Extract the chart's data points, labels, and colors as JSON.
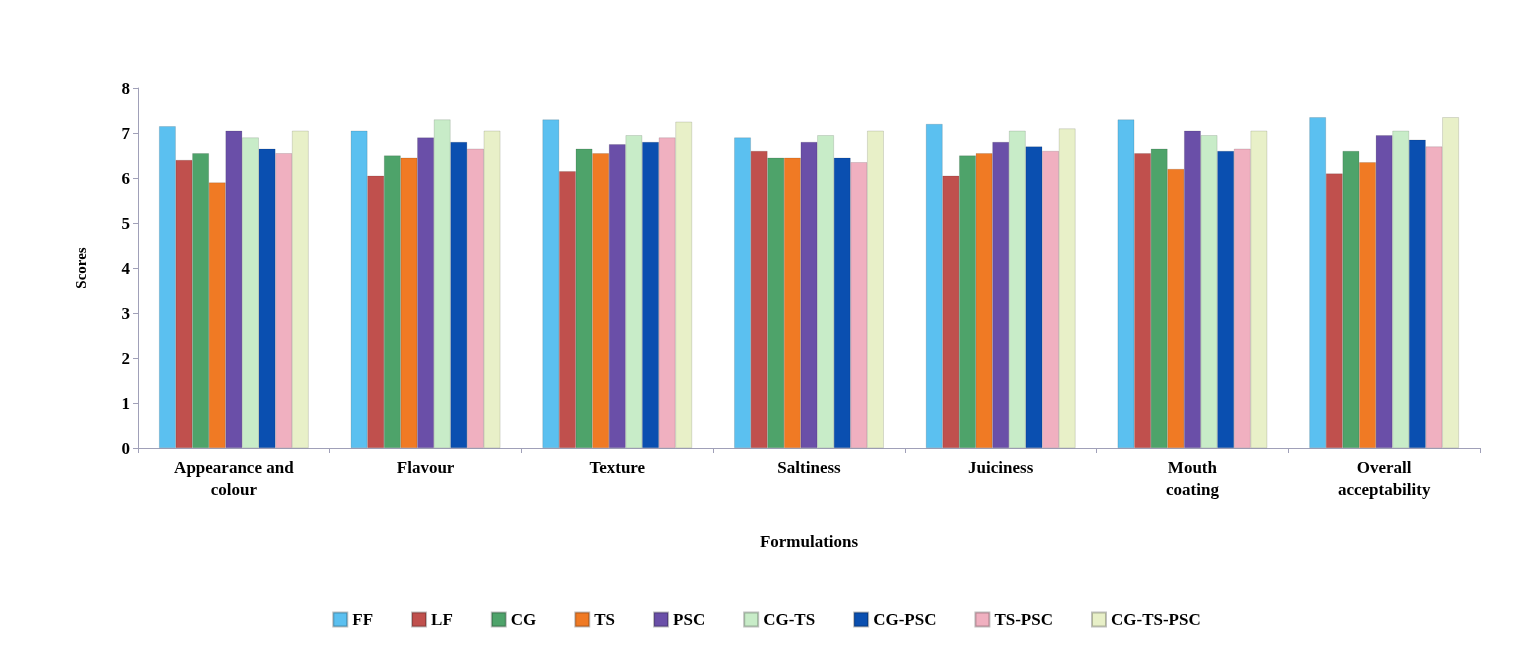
{
  "chart_data": {
    "type": "bar",
    "xlabel": "Formulations",
    "ylabel": "Scores",
    "categories": [
      "Appearance and colour",
      "Flavour",
      "Texture",
      "Saltiness",
      "Juiciness",
      "Mouth coating",
      "Overall acceptability"
    ],
    "series": [
      {
        "name": "FF",
        "color": "#5bc0f0",
        "values": [
          7.15,
          7.05,
          7.3,
          6.9,
          7.2,
          7.3,
          7.35
        ]
      },
      {
        "name": "LF",
        "color": "#c0504d",
        "values": [
          6.4,
          6.05,
          6.15,
          6.6,
          6.05,
          6.55,
          6.1
        ]
      },
      {
        "name": "CG",
        "color": "#4ea36a",
        "values": [
          6.55,
          6.5,
          6.65,
          6.45,
          6.5,
          6.65,
          6.6
        ]
      },
      {
        "name": "TS",
        "color": "#f07a24",
        "values": [
          5.9,
          6.45,
          6.55,
          6.45,
          6.55,
          6.2,
          6.35
        ]
      },
      {
        "name": "PSC",
        "color": "#6a4fa8",
        "values": [
          7.05,
          6.9,
          6.75,
          6.8,
          6.8,
          7.05,
          6.95
        ]
      },
      {
        "name": "CG-TS",
        "color": "#c8ecc8",
        "values": [
          6.9,
          7.3,
          6.95,
          6.95,
          7.05,
          6.95,
          7.05
        ]
      },
      {
        "name": "CG-PSC",
        "color": "#0a4fb0",
        "values": [
          6.65,
          6.8,
          6.8,
          6.45,
          6.7,
          6.6,
          6.85
        ]
      },
      {
        "name": "TS-PSC",
        "color": "#f0b0c0",
        "values": [
          6.55,
          6.65,
          6.9,
          6.35,
          6.6,
          6.65,
          6.7
        ]
      },
      {
        "name": "CG-TS-PSC",
        "color": "#e8f0c8",
        "values": [
          7.05,
          7.05,
          7.25,
          7.05,
          7.1,
          7.05,
          7.35
        ]
      }
    ],
    "ylim": [
      0,
      8
    ],
    "yticks": [
      0,
      1,
      2,
      3,
      4,
      5,
      6,
      7,
      8
    ],
    "grid": false,
    "legend": "bottom"
  }
}
